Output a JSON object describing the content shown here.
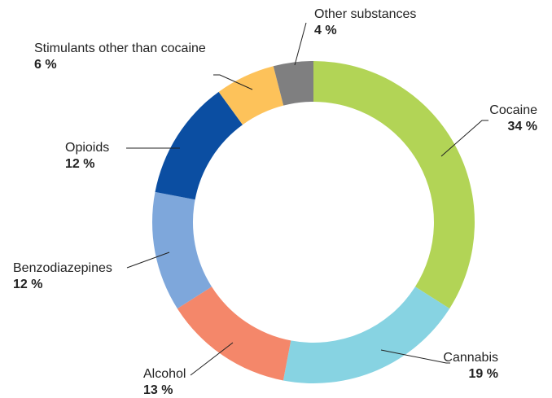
{
  "chart_data": {
    "type": "pie",
    "donut": true,
    "categories": [
      "Cocaine",
      "Cannabis",
      "Alcohol",
      "Benzodiazepines",
      "Opioids",
      "Stimulants other than cocaine",
      "Other substances"
    ],
    "values": [
      34,
      19,
      13,
      12,
      12,
      6,
      4
    ],
    "value_labels": [
      "34 %",
      "19 %",
      "13 %",
      "12 %",
      "12 %",
      "6 %",
      "4 %"
    ],
    "colors": [
      "#b2d456",
      "#87d3e2",
      "#f4876a",
      "#7ea7db",
      "#0b4ea2",
      "#fdc25a",
      "#7f7f80"
    ],
    "start": "12 o'clock",
    "direction": "clockwise",
    "legend": "none (direct labels)"
  }
}
